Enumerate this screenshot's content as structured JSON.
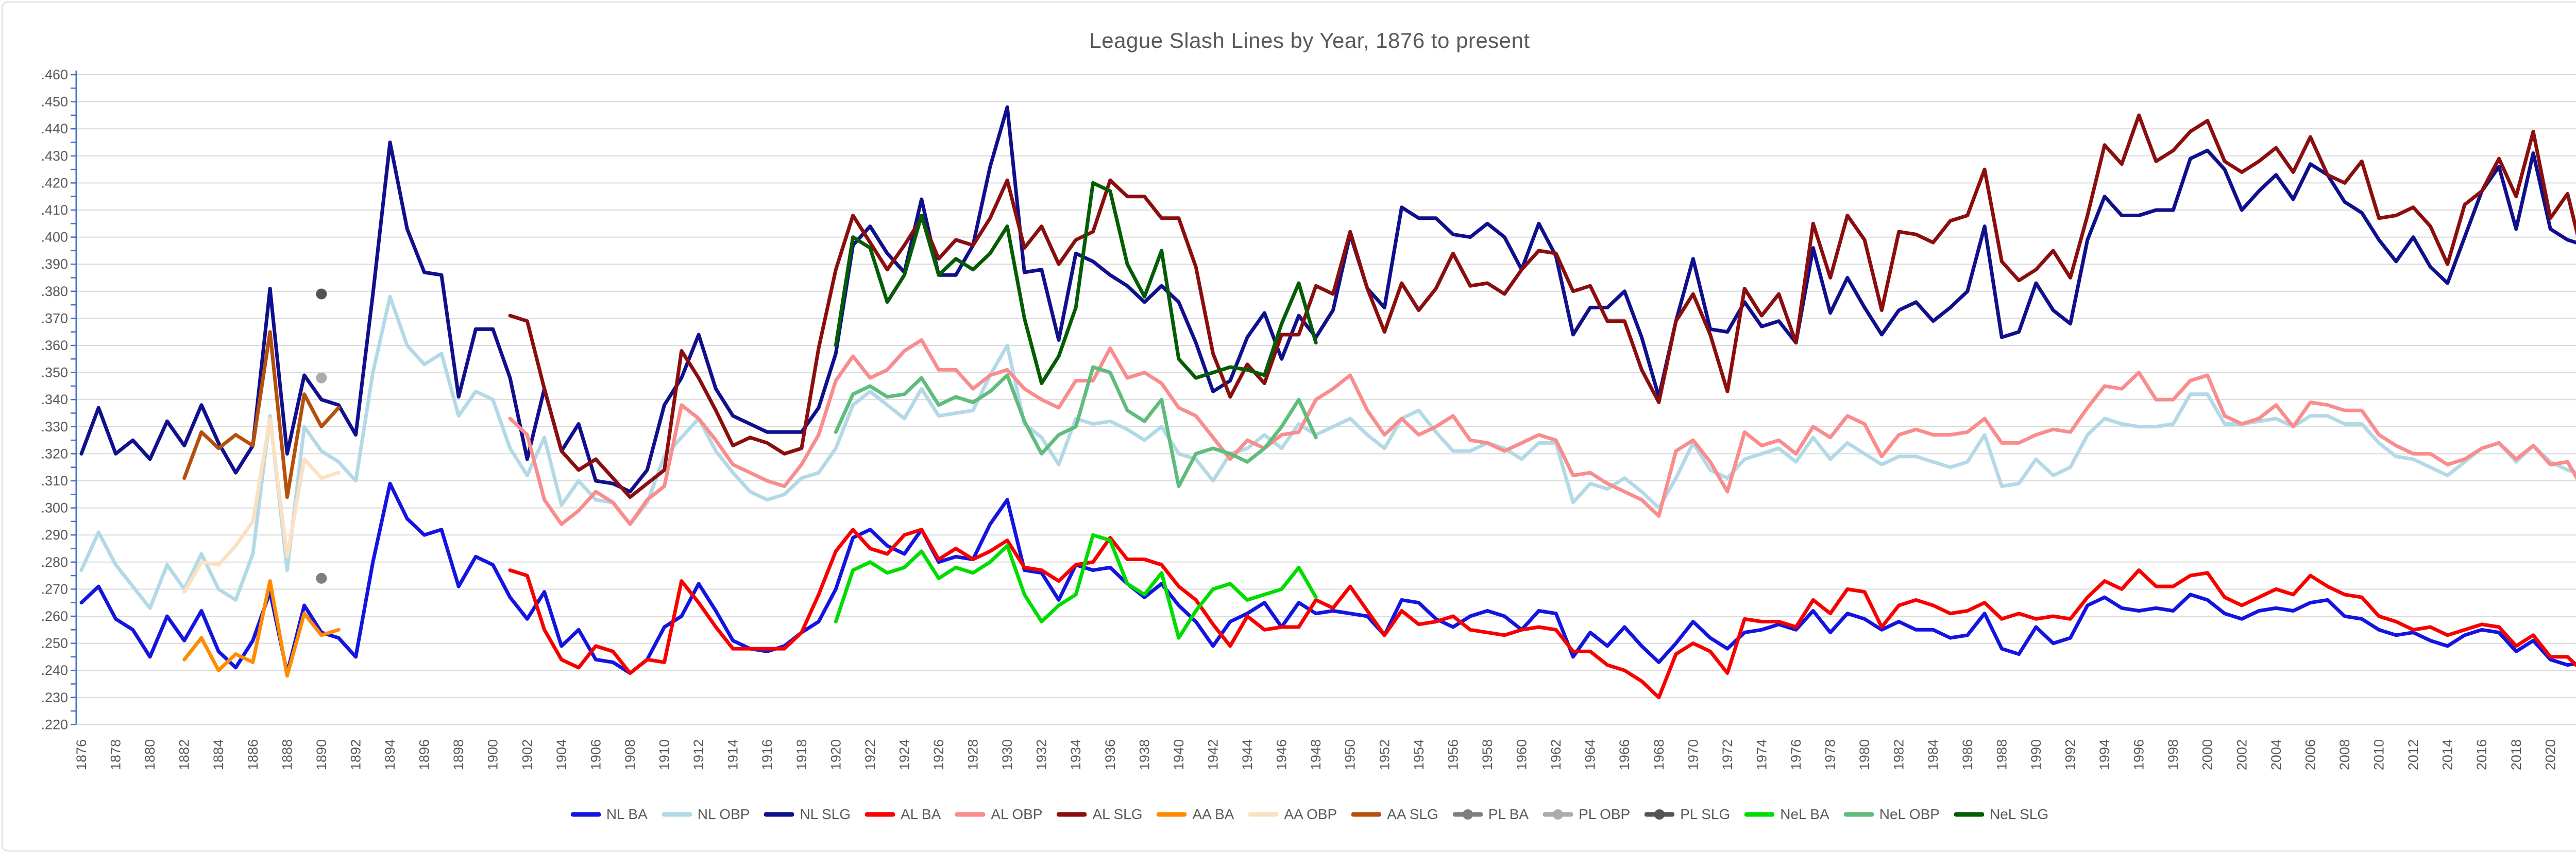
{
  "title": "League Slash Lines by Year, 1876 to present",
  "colors": {
    "axis": "#4472C4",
    "gridline": "#D9D9D9",
    "text": "#595959",
    "frame_border": "#D9D9D9",
    "background": "#FFFFFF"
  },
  "chart_data": {
    "type": "line",
    "title": "League Slash Lines by Year, 1876 to present",
    "grid": "horizontal",
    "legend_position": "bottom",
    "x_axis": {
      "start": 1876,
      "end": 2022,
      "label_step": 2
    },
    "y_axis": {
      "min": 0.22,
      "max": 0.46,
      "grid_step": 0.01,
      "tick_step": 0.005,
      "label_format": "no-leading-zero-3-decimals"
    },
    "series": [
      {
        "name": "NL BA",
        "color": "#1414E1",
        "marker": "none",
        "start_year": 1876,
        "values": [
          0.265,
          0.271,
          0.259,
          0.255,
          0.245,
          0.26,
          0.251,
          0.262,
          0.247,
          0.241,
          0.251,
          0.269,
          0.239,
          0.264,
          0.254,
          0.252,
          0.245,
          0.28,
          0.309,
          0.296,
          0.29,
          0.292,
          0.271,
          0.282,
          0.279,
          0.267,
          0.259,
          0.269,
          0.249,
          0.255,
          0.244,
          0.243,
          0.239,
          0.244,
          0.256,
          0.26,
          0.272,
          0.262,
          0.251,
          0.248,
          0.247,
          0.249,
          0.254,
          0.258,
          0.27,
          0.289,
          0.292,
          0.286,
          0.283,
          0.292,
          0.28,
          0.282,
          0.281,
          0.294,
          0.303,
          0.277,
          0.276,
          0.266,
          0.279,
          0.277,
          0.278,
          0.272,
          0.267,
          0.272,
          0.264,
          0.258,
          0.249,
          0.258,
          0.261,
          0.265,
          0.256,
          0.265,
          0.261,
          0.262,
          0.261,
          0.26,
          0.253,
          0.266,
          0.265,
          0.259,
          0.256,
          0.26,
          0.262,
          0.26,
          0.255,
          0.262,
          0.261,
          0.245,
          0.254,
          0.249,
          0.256,
          0.249,
          0.243,
          0.25,
          0.258,
          0.252,
          0.248,
          0.254,
          0.255,
          0.257,
          0.255,
          0.262,
          0.254,
          0.261,
          0.259,
          0.255,
          0.258,
          0.255,
          0.255,
          0.252,
          0.253,
          0.261,
          0.248,
          0.246,
          0.256,
          0.25,
          0.252,
          0.264,
          0.267,
          0.263,
          0.262,
          0.263,
          0.262,
          0.268,
          0.266,
          0.261,
          0.259,
          0.262,
          0.263,
          0.262,
          0.265,
          0.266,
          0.26,
          0.259,
          0.255,
          0.253,
          0.254,
          0.251,
          0.249,
          0.253,
          0.255,
          0.254,
          0.247,
          0.251,
          0.244,
          0.242,
          0.243
        ]
      },
      {
        "name": "NL OBP",
        "color": "#B3D9E6",
        "marker": "none",
        "start_year": 1876,
        "values": [
          0.277,
          0.291,
          0.279,
          0.271,
          0.263,
          0.279,
          0.27,
          0.283,
          0.27,
          0.266,
          0.283,
          0.334,
          0.277,
          0.33,
          0.321,
          0.317,
          0.31,
          0.35,
          0.378,
          0.36,
          0.353,
          0.357,
          0.334,
          0.343,
          0.34,
          0.322,
          0.312,
          0.326,
          0.301,
          0.31,
          0.303,
          0.302,
          0.294,
          0.302,
          0.319,
          0.326,
          0.333,
          0.321,
          0.313,
          0.306,
          0.303,
          0.305,
          0.311,
          0.313,
          0.322,
          0.338,
          0.343,
          0.338,
          0.333,
          0.344,
          0.334,
          0.335,
          0.336,
          0.349,
          0.36,
          0.331,
          0.326,
          0.316,
          0.333,
          0.331,
          0.332,
          0.329,
          0.325,
          0.33,
          0.32,
          0.318,
          0.31,
          0.32,
          0.322,
          0.327,
          0.322,
          0.331,
          0.327,
          0.33,
          0.333,
          0.327,
          0.322,
          0.333,
          0.336,
          0.328,
          0.321,
          0.321,
          0.324,
          0.322,
          0.318,
          0.324,
          0.324,
          0.302,
          0.309,
          0.307,
          0.311,
          0.306,
          0.3,
          0.311,
          0.324,
          0.314,
          0.311,
          0.318,
          0.32,
          0.322,
          0.317,
          0.326,
          0.318,
          0.324,
          0.32,
          0.316,
          0.319,
          0.319,
          0.317,
          0.315,
          0.317,
          0.327,
          0.308,
          0.309,
          0.318,
          0.312,
          0.315,
          0.327,
          0.333,
          0.331,
          0.33,
          0.33,
          0.331,
          0.342,
          0.342,
          0.331,
          0.331,
          0.332,
          0.333,
          0.33,
          0.334,
          0.334,
          0.331,
          0.331,
          0.324,
          0.319,
          0.318,
          0.315,
          0.312,
          0.317,
          0.322,
          0.324,
          0.317,
          0.323,
          0.317,
          0.314,
          0.312
        ]
      },
      {
        "name": "NL SLG",
        "color": "#10108C",
        "marker": "none",
        "start_year": 1876,
        "values": [
          0.32,
          0.337,
          0.32,
          0.325,
          0.318,
          0.332,
          0.323,
          0.338,
          0.324,
          0.313,
          0.323,
          0.381,
          0.32,
          0.349,
          0.34,
          0.338,
          0.327,
          0.379,
          0.435,
          0.403,
          0.387,
          0.386,
          0.341,
          0.366,
          0.366,
          0.348,
          0.318,
          0.344,
          0.321,
          0.331,
          0.31,
          0.309,
          0.306,
          0.314,
          0.338,
          0.348,
          0.364,
          0.344,
          0.334,
          0.331,
          0.328,
          0.328,
          0.328,
          0.337,
          0.357,
          0.397,
          0.404,
          0.394,
          0.387,
          0.414,
          0.386,
          0.386,
          0.397,
          0.426,
          0.448,
          0.387,
          0.388,
          0.362,
          0.394,
          0.391,
          0.386,
          0.382,
          0.376,
          0.382,
          0.376,
          0.361,
          0.343,
          0.347,
          0.363,
          0.372,
          0.355,
          0.371,
          0.363,
          0.373,
          0.401,
          0.381,
          0.374,
          0.411,
          0.407,
          0.407,
          0.401,
          0.4,
          0.405,
          0.4,
          0.388,
          0.405,
          0.393,
          0.364,
          0.374,
          0.374,
          0.38,
          0.363,
          0.341,
          0.369,
          0.392,
          0.366,
          0.365,
          0.376,
          0.367,
          0.369,
          0.361,
          0.396,
          0.372,
          0.385,
          0.374,
          0.364,
          0.373,
          0.376,
          0.369,
          0.374,
          0.38,
          0.404,
          0.363,
          0.365,
          0.383,
          0.373,
          0.368,
          0.399,
          0.415,
          0.408,
          0.408,
          0.41,
          0.41,
          0.429,
          0.432,
          0.425,
          0.41,
          0.417,
          0.423,
          0.414,
          0.427,
          0.423,
          0.413,
          0.409,
          0.399,
          0.391,
          0.4,
          0.389,
          0.383,
          0.4,
          0.417,
          0.426,
          0.403,
          0.431,
          0.403,
          0.399,
          0.397
        ]
      },
      {
        "name": "AL BA",
        "color": "#F80000",
        "marker": "none",
        "start_year": 1901,
        "values": [
          0.277,
          0.275,
          0.255,
          0.244,
          0.241,
          0.249,
          0.247,
          0.239,
          0.244,
          0.243,
          0.273,
          0.265,
          0.256,
          0.248,
          0.248,
          0.248,
          0.248,
          0.254,
          0.268,
          0.284,
          0.292,
          0.285,
          0.283,
          0.29,
          0.292,
          0.281,
          0.285,
          0.281,
          0.284,
          0.288,
          0.278,
          0.277,
          0.273,
          0.279,
          0.28,
          0.289,
          0.281,
          0.281,
          0.279,
          0.271,
          0.266,
          0.257,
          0.249,
          0.26,
          0.255,
          0.256,
          0.256,
          0.266,
          0.263,
          0.271,
          0.262,
          0.253,
          0.262,
          0.257,
          0.258,
          0.26,
          0.255,
          0.254,
          0.253,
          0.255,
          0.256,
          0.255,
          0.247,
          0.247,
          0.242,
          0.24,
          0.236,
          0.23,
          0.246,
          0.25,
          0.247,
          0.239,
          0.259,
          0.258,
          0.258,
          0.256,
          0.266,
          0.261,
          0.27,
          0.269,
          0.256,
          0.264,
          0.266,
          0.264,
          0.261,
          0.262,
          0.265,
          0.259,
          0.261,
          0.259,
          0.26,
          0.259,
          0.267,
          0.273,
          0.27,
          0.277,
          0.271,
          0.271,
          0.275,
          0.276,
          0.267,
          0.264,
          0.267,
          0.27,
          0.268,
          0.275,
          0.271,
          0.268,
          0.267,
          0.26,
          0.258,
          0.255,
          0.256,
          0.253,
          0.255,
          0.257,
          0.256,
          0.249,
          0.253,
          0.245,
          0.245,
          0.239
        ]
      },
      {
        "name": "AL OBP",
        "color": "#F98C8C",
        "marker": "none",
        "start_year": 1901,
        "values": [
          0.333,
          0.327,
          0.303,
          0.294,
          0.299,
          0.306,
          0.302,
          0.294,
          0.303,
          0.308,
          0.338,
          0.333,
          0.325,
          0.316,
          0.313,
          0.31,
          0.308,
          0.316,
          0.327,
          0.347,
          0.356,
          0.348,
          0.351,
          0.358,
          0.362,
          0.351,
          0.351,
          0.344,
          0.349,
          0.351,
          0.344,
          0.34,
          0.337,
          0.347,
          0.347,
          0.359,
          0.348,
          0.35,
          0.346,
          0.337,
          0.334,
          0.326,
          0.318,
          0.325,
          0.322,
          0.327,
          0.328,
          0.34,
          0.344,
          0.349,
          0.336,
          0.327,
          0.333,
          0.327,
          0.33,
          0.334,
          0.325,
          0.324,
          0.321,
          0.324,
          0.327,
          0.325,
          0.312,
          0.313,
          0.309,
          0.306,
          0.303,
          0.297,
          0.321,
          0.325,
          0.317,
          0.306,
          0.328,
          0.323,
          0.325,
          0.32,
          0.33,
          0.326,
          0.334,
          0.331,
          0.319,
          0.327,
          0.329,
          0.327,
          0.327,
          0.328,
          0.333,
          0.324,
          0.324,
          0.327,
          0.329,
          0.328,
          0.337,
          0.345,
          0.344,
          0.35,
          0.34,
          0.34,
          0.347,
          0.349,
          0.334,
          0.331,
          0.333,
          0.338,
          0.33,
          0.339,
          0.338,
          0.336,
          0.336,
          0.327,
          0.323,
          0.32,
          0.32,
          0.316,
          0.318,
          0.322,
          0.324,
          0.318,
          0.323,
          0.316,
          0.317,
          0.306
        ]
      },
      {
        "name": "AL SLG",
        "color": "#8B0E0E",
        "marker": "none",
        "start_year": 1901,
        "values": [
          0.371,
          0.369,
          0.344,
          0.321,
          0.314,
          0.318,
          0.311,
          0.304,
          0.309,
          0.314,
          0.358,
          0.348,
          0.336,
          0.323,
          0.326,
          0.324,
          0.32,
          0.322,
          0.359,
          0.388,
          0.408,
          0.398,
          0.388,
          0.397,
          0.407,
          0.392,
          0.399,
          0.397,
          0.407,
          0.421,
          0.396,
          0.404,
          0.39,
          0.399,
          0.402,
          0.421,
          0.415,
          0.415,
          0.407,
          0.407,
          0.389,
          0.357,
          0.341,
          0.353,
          0.346,
          0.364,
          0.364,
          0.382,
          0.379,
          0.402,
          0.381,
          0.365,
          0.383,
          0.373,
          0.381,
          0.394,
          0.382,
          0.383,
          0.379,
          0.388,
          0.395,
          0.394,
          0.38,
          0.382,
          0.369,
          0.369,
          0.351,
          0.339,
          0.369,
          0.379,
          0.364,
          0.343,
          0.381,
          0.371,
          0.379,
          0.361,
          0.405,
          0.385,
          0.408,
          0.399,
          0.373,
          0.402,
          0.401,
          0.398,
          0.406,
          0.408,
          0.425,
          0.391,
          0.384,
          0.388,
          0.395,
          0.385,
          0.408,
          0.434,
          0.427,
          0.445,
          0.428,
          0.432,
          0.439,
          0.443,
          0.428,
          0.424,
          0.428,
          0.433,
          0.424,
          0.437,
          0.423,
          0.42,
          0.428,
          0.407,
          0.408,
          0.411,
          0.404,
          0.39,
          0.412,
          0.417,
          0.429,
          0.415,
          0.439,
          0.407,
          0.416,
          0.39
        ]
      },
      {
        "name": "AA BA",
        "color": "#FF8C00",
        "marker": "none",
        "start_year": 1882,
        "values": [
          0.244,
          0.252,
          0.24,
          0.246,
          0.243,
          0.273,
          0.238,
          0.261,
          0.253,
          0.255
        ]
      },
      {
        "name": "AA OBP",
        "color": "#FCE0C2",
        "marker": "none",
        "start_year": 1882,
        "values": [
          0.269,
          0.28,
          0.279,
          0.286,
          0.295,
          0.333,
          0.282,
          0.318,
          0.311,
          0.313
        ]
      },
      {
        "name": "AA SLG",
        "color": "#B5500C",
        "marker": "none",
        "start_year": 1882,
        "values": [
          0.311,
          0.328,
          0.322,
          0.327,
          0.323,
          0.365,
          0.304,
          0.342,
          0.33,
          0.337
        ]
      },
      {
        "name": "PL BA",
        "color": "#7F7F7F",
        "marker": "circle",
        "start_year": 1890,
        "values": [
          0.274
        ]
      },
      {
        "name": "PL OBP",
        "color": "#ACACAC",
        "marker": "circle",
        "start_year": 1890,
        "values": [
          0.348
        ]
      },
      {
        "name": "PL SLG",
        "color": "#545454",
        "marker": "circle",
        "start_year": 1890,
        "values": [
          0.379
        ]
      },
      {
        "name": "NeL BA",
        "color": "#00DC00",
        "marker": "none",
        "start_year": 1920,
        "values": [
          0.258,
          0.277,
          0.28,
          0.276,
          0.278,
          0.284,
          0.274,
          0.278,
          0.276,
          0.28,
          0.286,
          0.268,
          0.258,
          0.264,
          0.268,
          0.29,
          0.288,
          0.272,
          0.268,
          0.276,
          0.252,
          0.262,
          0.27,
          0.272,
          0.266,
          0.268,
          0.27,
          0.278,
          0.267
        ]
      },
      {
        "name": "NeL OBP",
        "color": "#5FBC7D",
        "marker": "none",
        "start_year": 1920,
        "values": [
          0.328,
          0.342,
          0.345,
          0.341,
          0.342,
          0.348,
          0.338,
          0.341,
          0.339,
          0.343,
          0.349,
          0.332,
          0.32,
          0.327,
          0.33,
          0.352,
          0.35,
          0.336,
          0.332,
          0.34,
          0.308,
          0.32,
          0.322,
          0.32,
          0.317,
          0.322,
          0.33,
          0.34,
          0.326
        ]
      },
      {
        "name": "NeL SLG",
        "color": "#045C04",
        "marker": "none",
        "start_year": 1920,
        "values": [
          0.36,
          0.4,
          0.396,
          0.376,
          0.386,
          0.408,
          0.386,
          0.392,
          0.388,
          0.394,
          0.404,
          0.37,
          0.346,
          0.356,
          0.374,
          0.42,
          0.417,
          0.39,
          0.378,
          0.395,
          0.355,
          0.348,
          0.35,
          0.352,
          0.351,
          0.349,
          0.368,
          0.383,
          0.361
        ]
      }
    ]
  }
}
